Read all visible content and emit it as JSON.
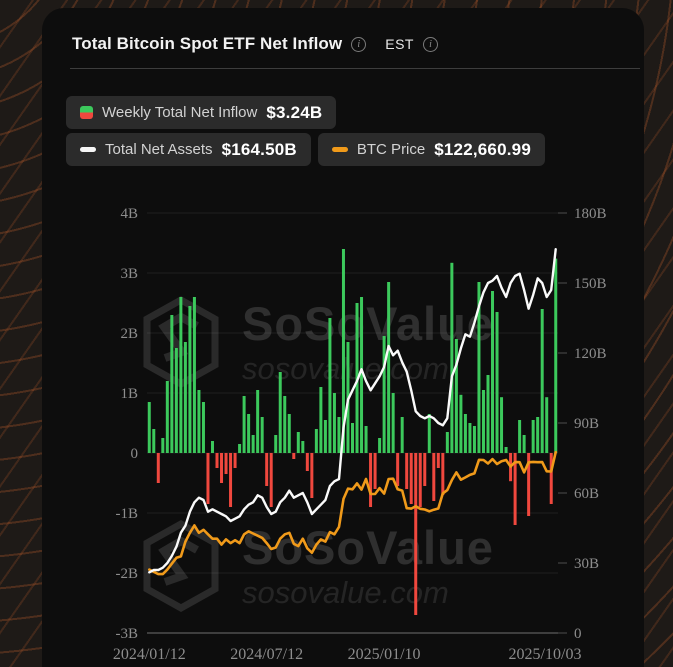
{
  "header": {
    "title": "Total Bitcoin Spot ETF Net Inflow",
    "est_label": "EST",
    "info_icon_glyph": "i"
  },
  "legend": [
    {
      "id": "weekly-net-inflow",
      "label": "Weekly Total Net Inflow",
      "value": "$3.24B",
      "icon": "green-red-split-square"
    },
    {
      "id": "total-net-assets",
      "label": "Total Net Assets",
      "value": "$164.50B",
      "icon": "white-pill"
    },
    {
      "id": "btc-price",
      "label": "BTC Price",
      "value": "$122,660.99",
      "icon": "orange-pill"
    }
  ],
  "watermark": {
    "brand": "SoSoValue",
    "domain": "sosovalue.com",
    "logo": "sosovalue-cube-logo"
  },
  "colors": {
    "bar_positive": "#3cc95c",
    "bar_negative": "#f0483e",
    "net_assets_line": "#fafafa",
    "btc_line": "#f09a1a",
    "axis_text": "#8d8d8d",
    "gridline": "rgba(255,255,255,0.07)",
    "axis_line": "#6e6e6e",
    "card_bg": "#0d0d0d",
    "badge_bg": "#2b2b2b"
  },
  "chart_data": {
    "type": "combo",
    "frequency": "weekly",
    "x_range": [
      "2024/01/12",
      "2025/10/03"
    ],
    "x_tick_labels": [
      "2024/01/12",
      "2024/07/12",
      "2025/01/10",
      "2025/10/03"
    ],
    "x_tick_indices": [
      0,
      26,
      52,
      90
    ],
    "left_axis": {
      "unit": "B USD",
      "min": -3,
      "max": 4,
      "ticks": [
        "4B",
        "3B",
        "2B",
        "1B",
        "0",
        "-1B",
        "-2B",
        "-3B"
      ]
    },
    "right_axis": {
      "unit": "B USD",
      "min": 0,
      "max": 180,
      "ticks": [
        "180B",
        "150B",
        "120B",
        "90B",
        "60B",
        "30B",
        "0"
      ]
    },
    "btc_axis": {
      "unit": "k USD",
      "min": 0,
      "max": 285,
      "visible": false
    },
    "grid": true,
    "legend_position": "top-left",
    "series": [
      {
        "name": "Weekly Total Net Inflow",
        "type": "bar",
        "axis": "left",
        "unit": "B USD",
        "values": [
          0.85,
          0.4,
          -0.5,
          0.25,
          1.2,
          2.3,
          1.75,
          2.6,
          1.85,
          2.45,
          2.6,
          1.05,
          0.85,
          -0.85,
          0.2,
          -0.25,
          -0.5,
          -0.35,
          -0.9,
          -0.25,
          0.15,
          0.95,
          0.65,
          0.3,
          1.05,
          0.6,
          -0.55,
          -0.9,
          0.3,
          1.35,
          0.95,
          0.65,
          -0.1,
          0.35,
          0.2,
          -0.3,
          -0.75,
          0.4,
          1.1,
          0.55,
          2.25,
          1.0,
          0.6,
          3.4,
          1.85,
          0.5,
          2.5,
          2.6,
          0.45,
          -0.9,
          -0.6,
          0.25,
          1.95,
          2.85,
          1.0,
          -0.55,
          0.6,
          -0.6,
          -0.85,
          -2.7,
          -0.9,
          -0.55,
          0.65,
          -0.8,
          -0.25,
          -0.7,
          0.35,
          3.17,
          1.9,
          0.97,
          0.65,
          0.5,
          0.45,
          2.85,
          1.05,
          1.3,
          2.7,
          2.35,
          0.93,
          0.1,
          -0.47,
          -1.2,
          0.55,
          0.3,
          -1.05,
          0.55,
          0.6,
          2.4,
          0.93,
          -0.85,
          3.24
        ]
      },
      {
        "name": "Total Net Assets",
        "type": "line",
        "axis": "right",
        "unit": "B USD",
        "values": [
          26,
          27,
          27,
          28,
          30,
          33,
          37,
          43,
          46,
          52,
          56,
          58,
          57,
          52,
          53,
          52,
          51,
          50,
          48,
          49,
          50,
          53,
          55,
          56,
          59,
          58,
          54,
          51,
          52,
          56,
          58,
          61,
          58,
          59,
          60,
          56,
          51,
          53,
          55,
          57,
          63,
          65,
          66,
          88,
          100,
          104,
          108,
          113,
          108,
          104,
          107,
          110,
          114,
          123,
          119,
          121,
          116,
          112,
          104,
          95,
          93,
          92,
          93,
          92,
          90,
          89,
          92,
          110,
          115,
          122,
          128,
          127,
          133,
          140,
          146,
          150,
          151,
          153,
          148,
          144,
          150,
          153,
          154,
          147,
          139,
          145,
          152,
          150,
          144,
          147,
          164.5
        ]
      },
      {
        "name": "BTC Price",
        "type": "line",
        "axis": "btc",
        "unit": "k USD",
        "values": [
          43,
          41.5,
          40,
          40,
          43,
          47,
          51,
          52,
          62,
          68,
          73,
          68,
          70,
          67,
          64,
          64,
          60,
          63.5,
          61,
          63,
          61,
          67,
          69,
          67.5,
          66,
          64.5,
          61,
          57,
          58,
          64,
          67,
          68,
          60.5,
          59,
          64,
          57.5,
          54.5,
          60,
          63.5,
          62,
          68.5,
          67,
          72,
          91,
          98,
          97.5,
          101.5,
          97.3,
          104.5,
          94.3,
          94.3,
          98.3,
          94.6,
          104.5,
          104.7,
          97.5,
          96.6,
          84.7,
          84.4,
          86,
          84.3,
          83.8,
          82.6,
          83.7,
          84.5,
          94.7,
          97,
          103.8,
          109,
          104,
          105.6,
          107.3,
          108.3,
          117.5,
          117.4,
          115,
          118,
          114.7,
          116.5,
          117.4,
          113,
          116,
          115.9,
          109,
          115.8,
          116.1,
          115.9,
          116,
          109.7,
          109.6,
          122.66
        ]
      }
    ]
  }
}
